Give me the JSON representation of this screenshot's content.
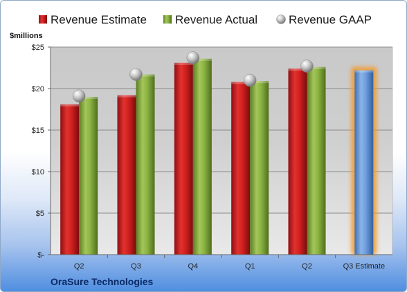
{
  "chart_data": {
    "type": "bar",
    "company": "OraSure Technologies",
    "ylabel": "$millions",
    "ylim": [
      0,
      25
    ],
    "yticks": [
      0,
      5,
      10,
      15,
      20,
      25
    ],
    "ytick_labels": [
      "$-",
      "$5",
      "$10",
      "$15",
      "$20",
      "$25"
    ],
    "categories": [
      "Q2",
      "Q3",
      "Q4",
      "Q1",
      "Q2",
      "Q3 Estimate"
    ],
    "series": [
      {
        "name": "Revenue Estimate",
        "kind": "bar",
        "color": "#c0191c",
        "values": [
          18.1,
          19.2,
          23.1,
          20.8,
          22.4,
          null
        ]
      },
      {
        "name": "Revenue Actual",
        "kind": "bar",
        "color": "#7ea33a",
        "values": [
          19.0,
          21.7,
          23.6,
          20.9,
          22.6,
          null
        ]
      },
      {
        "name": "Revenue GAAP",
        "kind": "marker",
        "color": "#b8b8b8",
        "values": [
          19.1,
          21.7,
          23.7,
          21.0,
          22.7,
          null
        ]
      },
      {
        "name": "",
        "kind": "bar",
        "color": "#5b8fd1",
        "values": [
          null,
          null,
          null,
          null,
          null,
          22.2
        ]
      }
    ],
    "grid": true,
    "legend_position": "top"
  }
}
